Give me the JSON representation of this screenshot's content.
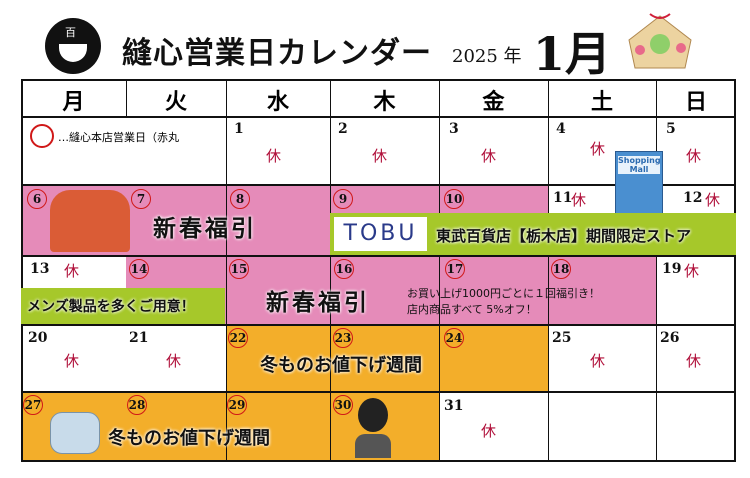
{
  "header": {
    "logo_text": "百",
    "title": "縫心営業日カレンダー",
    "year": "2025 年",
    "month": "1月"
  },
  "weekdays": [
    "月",
    "火",
    "水",
    "木",
    "金",
    "土",
    "日"
  ],
  "legend": "…縫心本店営業日（赤丸",
  "closed_label": "休",
  "days": {
    "d1": "1",
    "d2": "2",
    "d3": "3",
    "d4": "4",
    "d5": "5",
    "d6": "6",
    "d7": "7",
    "d8": "8",
    "d9": "9",
    "d10": "10",
    "d11": "11",
    "d12": "12",
    "d13": "13",
    "d14": "14",
    "d15": "15",
    "d16": "16",
    "d17": "17",
    "d18": "18",
    "d19": "19",
    "d20": "20",
    "d21": "21",
    "d22": "22",
    "d23": "23",
    "d24": "24",
    "d25": "25",
    "d26": "26",
    "d27": "27",
    "d28": "28",
    "d29": "29",
    "d30": "30",
    "d31": "31"
  },
  "events": {
    "fukubiki": "新春福引",
    "tobu_logo": "TOBU",
    "tobu_store": "東武百貨店【栃木店】期間限定ストア",
    "shopping_mall": "Shopping Mall",
    "mens": "メンズ製品を多くご用意！",
    "fukubiki_note1": "お買い上げ1000円ごとに１回福引き！",
    "fukubiki_note2": "店内商品すべて 5%オフ！",
    "winter_sale": "冬ものお値下げ週間"
  },
  "colors": {
    "pink": "#e58bb9",
    "green": "#a6c82a",
    "orange": "#f3ae2a",
    "closed": "#b0103a",
    "circle": "#d01818"
  }
}
